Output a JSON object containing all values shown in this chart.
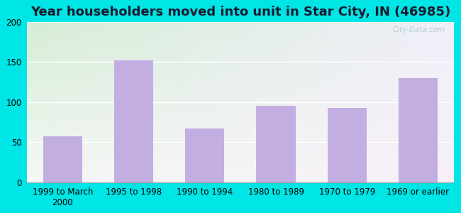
{
  "title": "Year householders moved into unit in Star City, IN (46985)",
  "categories": [
    "1999 to March\n2000",
    "1995 to 1998",
    "1990 to 1994",
    "1980 to 1989",
    "1970 to 1979",
    "1969 or earlier"
  ],
  "values": [
    57,
    152,
    67,
    95,
    93,
    130
  ],
  "bar_color": "#c2aee0",
  "ylim": [
    0,
    200
  ],
  "yticks": [
    0,
    50,
    100,
    150,
    200
  ],
  "background_outer": "#00e5e5",
  "grad_color_topleft": "#d6edd6",
  "grad_color_bottomright": "#f5f0fa",
  "title_fontsize": 13,
  "tick_fontsize": 8.5,
  "watermark": "City-Data.com",
  "grid_color": "#ffffff",
  "bar_width": 0.55
}
